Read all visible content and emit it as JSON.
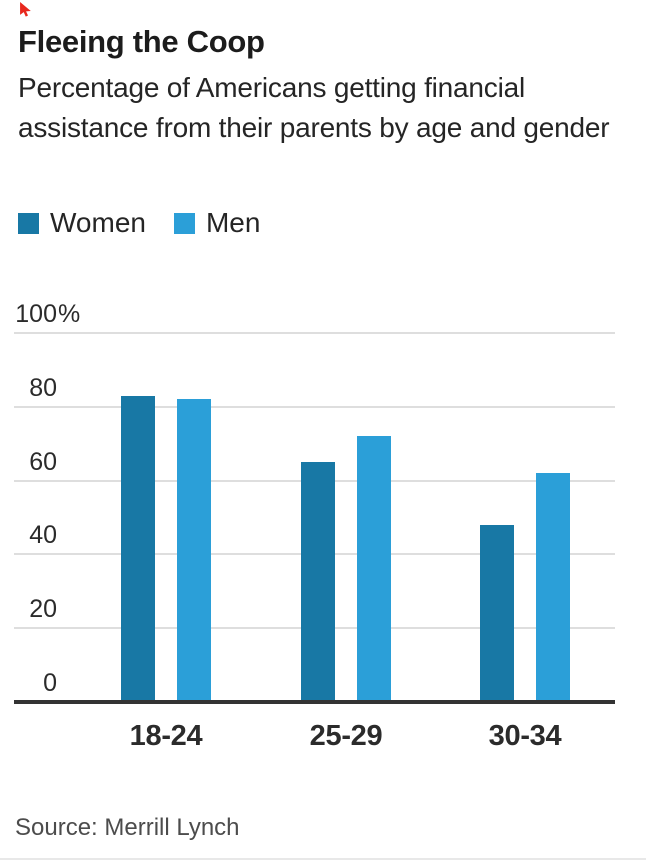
{
  "title": "Fleeing the Coop",
  "subtitle": "Percentage of Americans getting financial assistance from their parents by age and gender",
  "source": "Source: Merrill Lynch",
  "colors": {
    "women": "#1878a5",
    "men": "#2b9fd8",
    "gridline": "#dedede",
    "axis_baseline": "#333333",
    "heading_text": "#1c1c1c",
    "tick_text": "#2b2b2b",
    "source_text": "#4c4c4c",
    "cursor_marker": "#e8281e",
    "background": "#ffffff"
  },
  "chart_data": {
    "type": "bar",
    "title": "Fleeing the Coop",
    "subtitle": "Percentage of Americans getting financial assistance from their parents by age and gender",
    "categories": [
      "18-24",
      "25-29",
      "30-34"
    ],
    "series": [
      {
        "name": "Women",
        "color": "#1878a5",
        "values": [
          83,
          65,
          48
        ]
      },
      {
        "name": "Men",
        "color": "#2b9fd8",
        "values": [
          82,
          72,
          62
        ]
      }
    ],
    "xlabel": "",
    "ylim": [
      0,
      100
    ],
    "y_ticks": [
      100,
      80,
      60,
      40,
      20,
      0
    ],
    "y_tick_labels": [
      "100%",
      "80",
      "60",
      "40",
      "20",
      "0"
    ],
    "grid": "horizontal",
    "legend_position": "top-left",
    "source": "Source: Merrill Lynch"
  }
}
